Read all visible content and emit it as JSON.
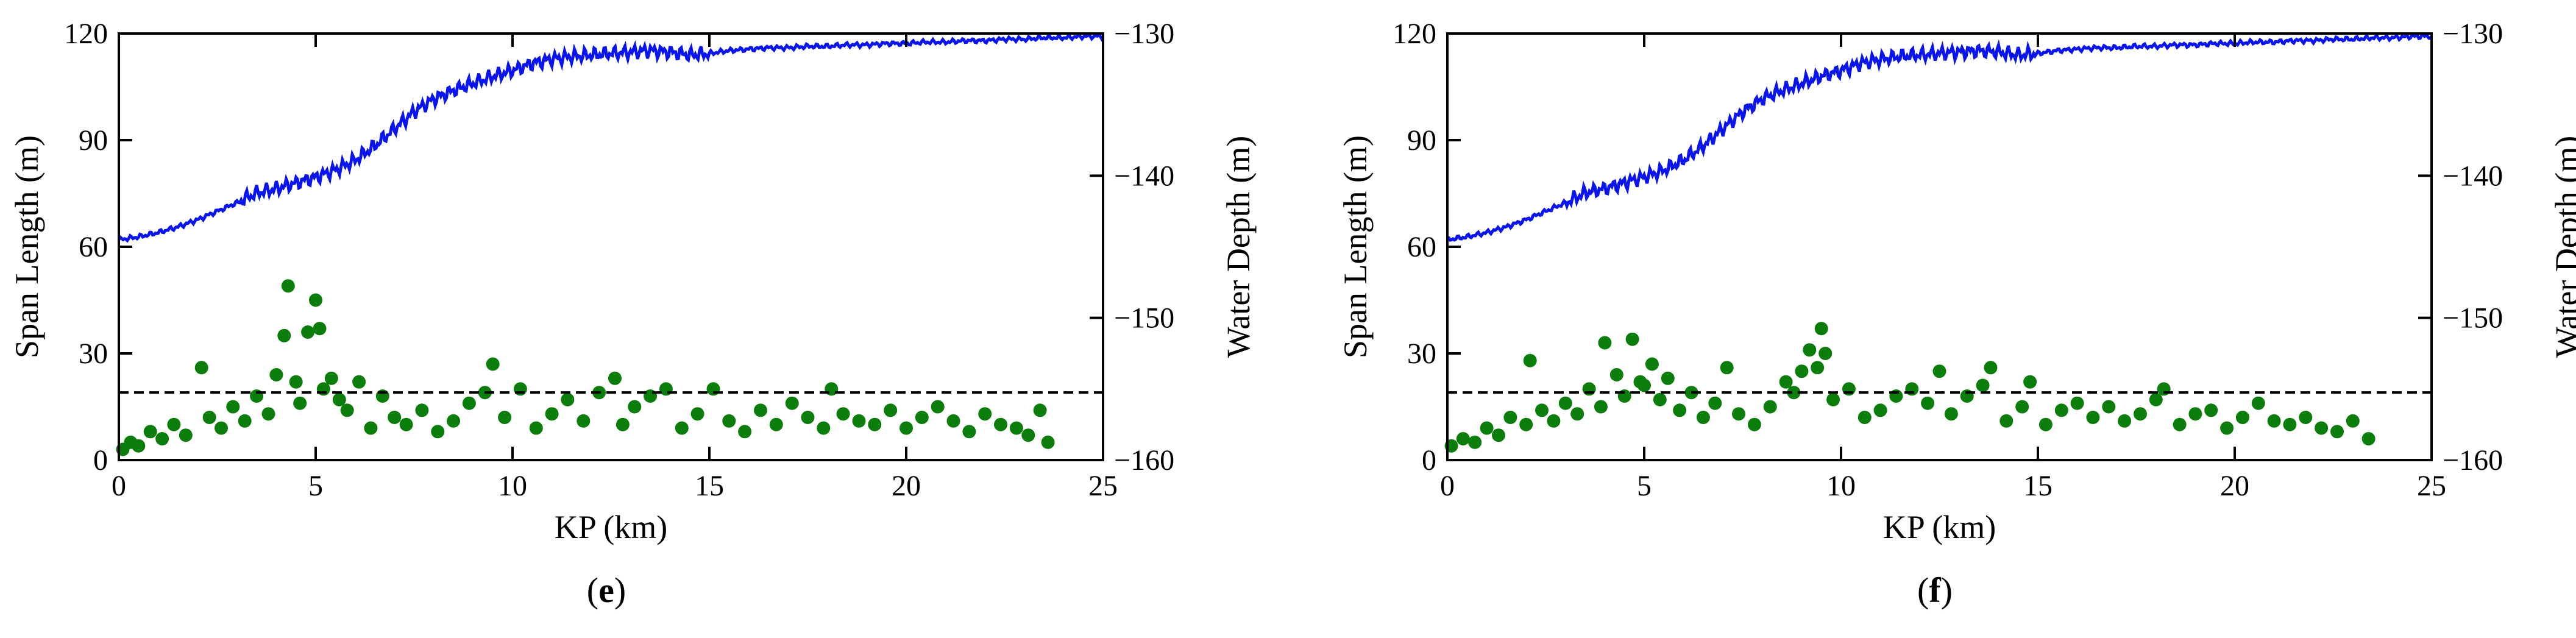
{
  "colors": {
    "depth_line": "#0a14ee",
    "span_points": "#0b7d0b",
    "threshold": "#000000",
    "axes": "#000000"
  },
  "panels": [
    {
      "label_open": "(",
      "label_letter": "e",
      "label_close": ")"
    },
    {
      "label_open": "(",
      "label_letter": "f",
      "label_close": ")"
    }
  ],
  "chart_data": [
    {
      "type": "scatter",
      "subplot_label": "(e)",
      "xlabel": "KP (km)",
      "ylabel": "Span Length (m)",
      "y2label": "Water Depth (m)",
      "xlim": [
        0,
        25
      ],
      "ylim": [
        0,
        120
      ],
      "y2lim": [
        -160,
        -130
      ],
      "xticks": [
        0,
        5,
        10,
        15,
        20,
        25
      ],
      "yticks": [
        0,
        30,
        60,
        90,
        120
      ],
      "y2ticks": [
        -160,
        -150,
        -140,
        -130
      ],
      "threshold_line": {
        "y": 19,
        "style": "dashed"
      },
      "water_depth_profile": {
        "x": [
          0,
          0.5,
          1,
          1.5,
          2,
          2.5,
          3,
          3.5,
          4,
          4.5,
          5,
          5.5,
          6,
          6.5,
          7,
          7.5,
          8,
          8.5,
          9,
          9.5,
          10,
          10.5,
          11,
          11.5,
          12,
          12.5,
          13,
          13.5,
          14,
          14.5,
          15,
          15.5,
          16,
          16.5,
          17,
          17.5,
          18,
          18.5,
          19,
          19.5,
          20,
          20.5,
          21,
          21.5,
          22,
          22.5,
          23,
          23.5,
          24,
          24.5,
          25
        ],
        "y": [
          -144.5,
          -144.3,
          -144.0,
          -143.6,
          -143.1,
          -142.5,
          -141.9,
          -141.2,
          -140.9,
          -140.5,
          -140.1,
          -139.6,
          -138.9,
          -137.9,
          -136.7,
          -135.5,
          -134.6,
          -134.0,
          -133.5,
          -133.0,
          -132.6,
          -132.1,
          -131.8,
          -131.6,
          -131.5,
          -131.4,
          -131.3,
          -131.2,
          -131.3,
          -131.5,
          -131.4,
          -131.2,
          -131.1,
          -131.0,
          -131.0,
          -130.9,
          -130.9,
          -130.8,
          -130.8,
          -130.7,
          -130.7,
          -130.6,
          -130.6,
          -130.5,
          -130.5,
          -130.4,
          -130.4,
          -130.3,
          -130.3,
          -130.2,
          -130.2
        ]
      },
      "spans": {
        "x": [
          0.1,
          0.3,
          0.5,
          0.8,
          1.1,
          1.4,
          1.7,
          2.1,
          2.3,
          2.6,
          2.9,
          3.2,
          3.5,
          3.8,
          4.0,
          4.2,
          4.3,
          4.5,
          4.6,
          4.8,
          5.0,
          5.1,
          5.2,
          5.4,
          5.6,
          5.8,
          6.1,
          6.4,
          6.7,
          7.0,
          7.3,
          7.7,
          8.1,
          8.5,
          8.9,
          9.3,
          9.5,
          9.8,
          10.2,
          10.6,
          11.0,
          11.4,
          11.8,
          12.2,
          12.6,
          12.8,
          13.1,
          13.5,
          13.9,
          14.3,
          14.7,
          15.1,
          15.5,
          15.9,
          16.3,
          16.7,
          17.1,
          17.5,
          17.9,
          18.1,
          18.4,
          18.8,
          19.2,
          19.6,
          20.0,
          20.4,
          20.8,
          21.2,
          21.6,
          22.0,
          22.4,
          22.8,
          23.1,
          23.4,
          23.6
        ],
        "y": [
          3,
          5,
          4,
          8,
          6,
          10,
          7,
          26,
          12,
          9,
          15,
          11,
          18,
          13,
          24,
          35,
          49,
          22,
          16,
          36,
          45,
          37,
          20,
          23,
          17,
          14,
          22,
          9,
          18,
          12,
          10,
          14,
          8,
          11,
          16,
          19,
          27,
          12,
          20,
          9,
          13,
          17,
          11,
          19,
          23,
          10,
          15,
          18,
          20,
          9,
          13,
          20,
          11,
          8,
          14,
          10,
          16,
          12,
          9,
          20,
          13,
          11,
          10,
          14,
          9,
          12,
          15,
          11,
          8,
          13,
          10,
          9,
          7,
          14,
          5
        ]
      }
    },
    {
      "type": "scatter",
      "subplot_label": "(f)",
      "xlabel": "KP (km)",
      "ylabel": "Span Length (m)",
      "y2label": "Water Depth (m)",
      "xlim": [
        0,
        25
      ],
      "ylim": [
        0,
        120
      ],
      "y2lim": [
        -160,
        -130
      ],
      "xticks": [
        0,
        5,
        10,
        15,
        20,
        25
      ],
      "yticks": [
        0,
        30,
        60,
        90,
        120
      ],
      "y2ticks": [
        -160,
        -150,
        -140,
        -130
      ],
      "threshold_line": {
        "y": 19,
        "style": "dashed"
      },
      "water_depth_profile": {
        "x": [
          0,
          0.5,
          1,
          1.5,
          2,
          2.5,
          3,
          3.5,
          4,
          4.5,
          5,
          5.5,
          6,
          6.5,
          7,
          7.5,
          8,
          8.5,
          9,
          9.5,
          10,
          10.5,
          11,
          11.5,
          12,
          12.5,
          13,
          13.5,
          14,
          14.5,
          15,
          15.5,
          16,
          16.5,
          17,
          17.5,
          18,
          18.5,
          19,
          19.5,
          20,
          20.5,
          21,
          21.5,
          22,
          22.5,
          23,
          23.5,
          24,
          24.5,
          25
        ],
        "y": [
          -144.5,
          -144.3,
          -144.0,
          -143.6,
          -143.1,
          -142.5,
          -141.9,
          -141.2,
          -140.9,
          -140.5,
          -140.1,
          -139.6,
          -138.9,
          -137.9,
          -136.7,
          -135.5,
          -134.6,
          -134.0,
          -133.5,
          -133.0,
          -132.6,
          -132.1,
          -131.8,
          -131.6,
          -131.5,
          -131.4,
          -131.3,
          -131.2,
          -131.3,
          -131.5,
          -131.4,
          -131.2,
          -131.1,
          -131.0,
          -131.0,
          -130.9,
          -130.9,
          -130.8,
          -130.8,
          -130.7,
          -130.7,
          -130.6,
          -130.6,
          -130.5,
          -130.5,
          -130.4,
          -130.4,
          -130.3,
          -130.3,
          -130.2,
          -130.2
        ]
      },
      "spans": {
        "x": [
          0.1,
          0.4,
          0.7,
          1.0,
          1.3,
          1.6,
          2.0,
          2.1,
          2.4,
          2.7,
          3.0,
          3.3,
          3.6,
          3.9,
          4.0,
          4.3,
          4.5,
          4.7,
          4.9,
          5.0,
          5.2,
          5.4,
          5.6,
          5.9,
          6.2,
          6.5,
          6.8,
          7.1,
          7.4,
          7.8,
          8.2,
          8.6,
          8.8,
          9.0,
          9.2,
          9.4,
          9.5,
          9.6,
          9.8,
          10.2,
          10.6,
          11.0,
          11.4,
          11.8,
          12.2,
          12.5,
          12.8,
          13.2,
          13.6,
          13.8,
          14.2,
          14.6,
          14.8,
          15.2,
          15.6,
          16.0,
          16.4,
          16.8,
          17.2,
          17.6,
          18.0,
          18.2,
          18.6,
          19.0,
          19.4,
          19.8,
          20.2,
          20.6,
          21.0,
          21.4,
          21.8,
          22.2,
          22.6,
          23.0,
          23.4
        ],
        "y": [
          4,
          6,
          5,
          9,
          7,
          12,
          10,
          28,
          14,
          11,
          16,
          13,
          20,
          15,
          33,
          24,
          18,
          34,
          22,
          21,
          27,
          17,
          23,
          14,
          19,
          12,
          16,
          26,
          13,
          10,
          15,
          22,
          19,
          25,
          31,
          26,
          37,
          30,
          17,
          20,
          12,
          14,
          18,
          20,
          16,
          25,
          13,
          18,
          21,
          26,
          11,
          15,
          22,
          10,
          14,
          16,
          12,
          15,
          11,
          13,
          17,
          20,
          10,
          13,
          14,
          9,
          12,
          16,
          11,
          10,
          12,
          9,
          8,
          11,
          6
        ]
      }
    }
  ]
}
